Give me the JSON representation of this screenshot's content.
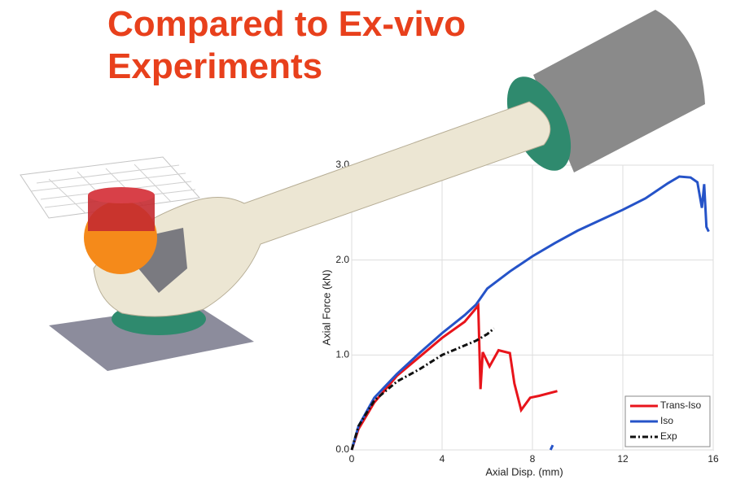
{
  "title": "Compared to Ex-vivo Experiments",
  "chart_data": {
    "type": "line",
    "xlabel": "Axial Disp. (mm)",
    "ylabel": "Axial Force (kN)",
    "xlim": [
      0,
      16
    ],
    "ylim": [
      0,
      3
    ],
    "xticks": [
      0,
      4,
      8,
      12,
      16
    ],
    "yticks": [
      {
        "value": 0,
        "label": "0.0"
      },
      {
        "value": 1,
        "label": "1.0"
      },
      {
        "value": 2,
        "label": "2.0"
      },
      {
        "value": 3,
        "label": "3.0"
      }
    ],
    "grid": true,
    "legend": "lower right",
    "series": [
      {
        "name": "Trans-Iso",
        "color": "#e8141b",
        "dash": "solid",
        "x": [
          0,
          0.3,
          1,
          2,
          3,
          4,
          5,
          5.6,
          5.7,
          5.8,
          6.1,
          6.5,
          7,
          7.2,
          7.5,
          7.9,
          8.3,
          9.1
        ],
        "values": [
          0,
          0.22,
          0.5,
          0.78,
          0.98,
          1.18,
          1.35,
          1.52,
          0.64,
          1.03,
          0.88,
          1.05,
          1.02,
          0.7,
          0.42,
          0.55,
          0.57,
          0.62
        ]
      },
      {
        "name": "Iso",
        "color": "#2553c8",
        "dash": "solid",
        "x": [
          0,
          0.3,
          1,
          2,
          3,
          4,
          5,
          5.5,
          6,
          7,
          8,
          9,
          10,
          11,
          12,
          13,
          14,
          14.5,
          15,
          15.3,
          15.5,
          15.6,
          15.7,
          15.8,
          null,
          8.8,
          8.9
        ],
        "values": [
          0,
          0.25,
          0.55,
          0.8,
          1.02,
          1.23,
          1.42,
          1.53,
          1.7,
          1.88,
          2.04,
          2.18,
          2.31,
          2.42,
          2.53,
          2.65,
          2.81,
          2.88,
          2.87,
          2.82,
          2.55,
          2.8,
          2.35,
          2.3,
          null,
          0,
          0.05
        ]
      },
      {
        "name": "Exp",
        "color": "#111111",
        "dash": "dash-dot",
        "x": [
          0,
          0.3,
          1,
          2,
          3,
          4,
          4.5,
          5,
          5.5,
          6,
          6.3
        ],
        "values": [
          0,
          0.25,
          0.52,
          0.72,
          0.85,
          1.0,
          1.05,
          1.1,
          1.15,
          1.22,
          1.28
        ]
      }
    ]
  }
}
